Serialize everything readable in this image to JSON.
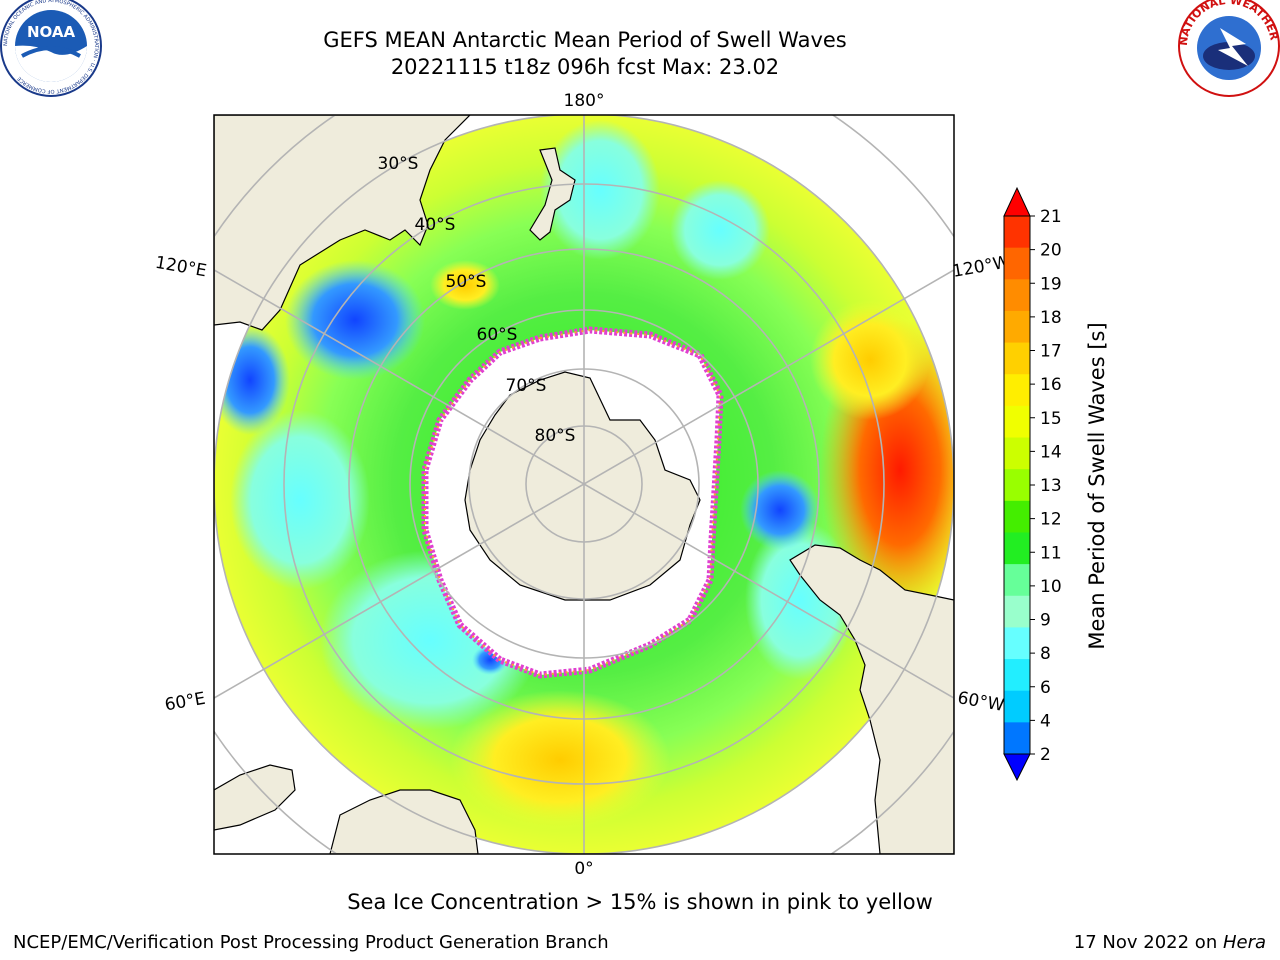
{
  "title": {
    "line1": "GEFS MEAN Antarctic Mean Period of Swell Waves",
    "line2": "20221115 t18z 096h fcst   Max: 23.02"
  },
  "map": {
    "projection": "south-polar-stereographic",
    "lon_labels": {
      "top": "180°",
      "bottom": "0°",
      "left_upper": "120°E",
      "left_lower": "60°E",
      "right_upper": "120°W",
      "right_lower": "60°W"
    },
    "lat_labels": [
      "30°S",
      "40°S",
      "50°S",
      "60°S",
      "70°S",
      "80°S"
    ],
    "colors": {
      "land": "#efecdc",
      "grid": "#b4b4b4",
      "coast": "#000000",
      "sea_ice_core": "#ffffff",
      "ice_edge_pink": "#e040d0",
      "ice_edge_orange": "#ffa030"
    }
  },
  "colorbar": {
    "label": "Mean Period of Swell Waves [s]",
    "ticks": [
      "21",
      "20",
      "19",
      "18",
      "17",
      "16",
      "15",
      "14",
      "13",
      "12",
      "11",
      "10",
      "9",
      "8",
      "6",
      "4",
      "2"
    ],
    "colors": [
      "#ff0000",
      "#ff3300",
      "#ff6600",
      "#ff8c00",
      "#ffaa00",
      "#ffd000",
      "#ffee00",
      "#f0ff00",
      "#ccff00",
      "#99ff00",
      "#44ee00",
      "#22ee22",
      "#66ff99",
      "#99ffcc",
      "#66ffff",
      "#22eeff",
      "#00ccff",
      "#0077ff",
      "#0000ff"
    ]
  },
  "note": "Sea Ice Concentration > 15% is shown in pink to yellow",
  "footer": {
    "left": "NCEP/EMC/Verification Post Processing Product Generation Branch",
    "date": "17 Nov 2022 on ",
    "machine": "Hera"
  },
  "logos": {
    "left": "NOAA",
    "left_ring": "NATIONAL OCEANIC AND ATMOSPHERIC ADMINISTRATION · U.S. DEPARTMENT OF COMMERCE",
    "right_ring": "NATIONAL WEATHER SERVICE"
  }
}
